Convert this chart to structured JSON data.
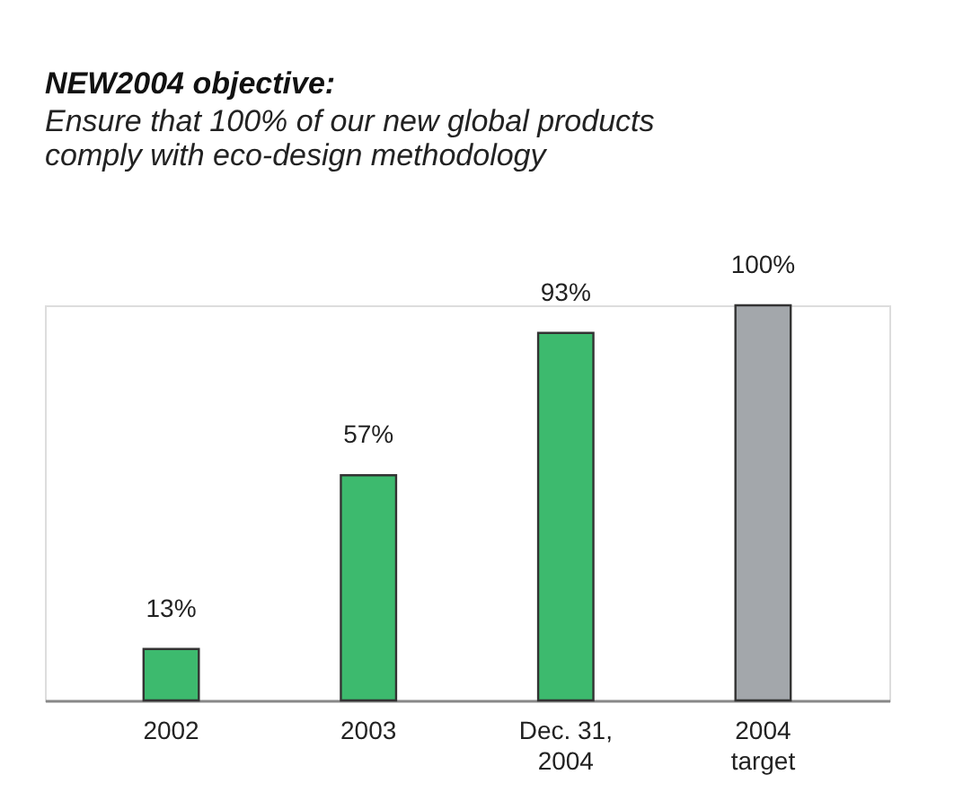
{
  "chart_data": {
    "type": "bar",
    "title": "NEW2004 objective:",
    "subtitle": "Ensure that 100% of our new global products comply with eco-design methodology",
    "categories": [
      "2002",
      "2003",
      "Dec. 31, 2004",
      "2004 target"
    ],
    "values": [
      13,
      57,
      93,
      100
    ],
    "colors": [
      "#3dba6e",
      "#3dba6e",
      "#3dba6e",
      "#a3a7ab"
    ],
    "ylim": [
      0,
      100
    ],
    "data_labels": true,
    "value_labels": [
      "13%",
      "57%",
      "93%",
      "100%"
    ],
    "grid": false
  }
}
